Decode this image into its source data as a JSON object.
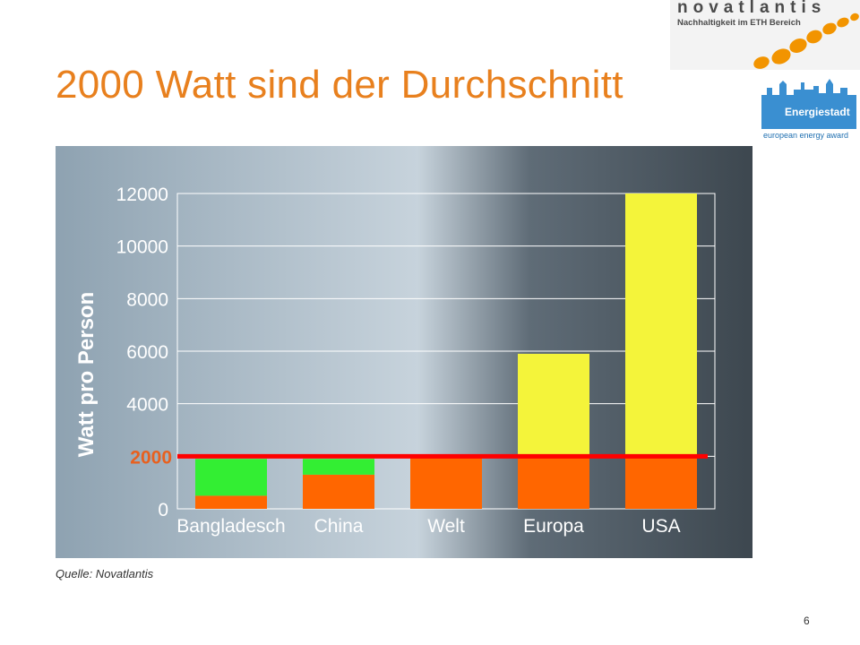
{
  "slide": {
    "title": "2000 Watt sind der Durchschnitt",
    "source": "Quelle: Novatlantis",
    "page_number": "6"
  },
  "logos": {
    "novatlantis": {
      "brand": "novatlantis",
      "tagline": "Nachhaltigkeit im ETH Bereich",
      "color": "#f29400"
    },
    "energiestadt": {
      "name": "Energiestadt",
      "award": "european energy award",
      "color": "#3a8fd1"
    }
  },
  "chart_data": {
    "type": "bar",
    "stacked": true,
    "categories": [
      "Bangladesch",
      "China",
      "Welt",
      "Europa",
      "USA"
    ],
    "series": [
      {
        "color": "#ff6600",
        "values": [
          500,
          1300,
          2000,
          2000,
          2000
        ]
      },
      {
        "color": "#33ee33",
        "values": [
          1400,
          600,
          0,
          0,
          0
        ]
      },
      {
        "color": "#f4f43a",
        "values": [
          0,
          0,
          0,
          3900,
          10000
        ]
      }
    ],
    "ylabel": "Watt pro Person",
    "ylim": [
      0,
      12000
    ],
    "yticks": [
      0,
      2000,
      4000,
      6000,
      8000,
      10000,
      12000
    ],
    "grid": true,
    "reference_line": {
      "value": 2000,
      "label": "2000",
      "color": "#ff0000"
    }
  }
}
